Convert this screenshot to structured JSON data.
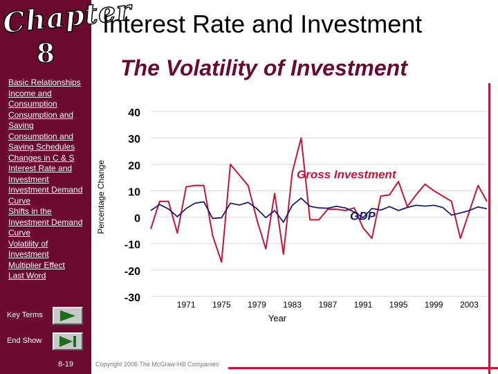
{
  "slide": {
    "title": "Interest Rate and Investment",
    "chapter_word": "Chapter",
    "chapter_number": "8",
    "page_number": "8-19",
    "copyright": "Copyright 2006 The McGraw-Hill Companies"
  },
  "nav": {
    "items": [
      "Basic Relationships",
      "Income and Consumption",
      "Consumption and Saving",
      "Consumption and Saving Schedules",
      "Changes in C & S",
      "Interest Rate and Investment",
      "Investment Demand Curve",
      "Shifts in the Investment Demand Curve",
      "Volatility of Investment",
      "Multiplier Effect",
      "Last Word"
    ]
  },
  "buttons": {
    "key_terms": "Key Terms",
    "end_show": "End Show"
  },
  "colors": {
    "sidebar": "#6b0a2e",
    "gross_investment": "#cc1133",
    "gdp": "#1a1a6e"
  },
  "chart_data": {
    "type": "line",
    "title": "The Volatility of Investment",
    "xlabel": "Year",
    "ylabel": "Percentage Change",
    "ylim": [
      -30,
      40
    ],
    "yticks": [
      40,
      30,
      20,
      10,
      0,
      -10,
      -20,
      -30
    ],
    "xlim": [
      1967,
      2005
    ],
    "xticks": [
      1971,
      1975,
      1979,
      1983,
      1987,
      1991,
      1995,
      1999,
      2003
    ],
    "x": [
      1967,
      1968,
      1969,
      1970,
      1971,
      1972,
      1973,
      1974,
      1975,
      1976,
      1977,
      1978,
      1979,
      1980,
      1981,
      1982,
      1983,
      1984,
      1985,
      1986,
      1987,
      1988,
      1989,
      1990,
      1991,
      1992,
      1993,
      1994,
      1995,
      1996,
      1997,
      1998,
      1999,
      2000,
      2001,
      2002,
      2003,
      2004,
      2005
    ],
    "series": [
      {
        "name": "Gross Investment",
        "label": "Gross Investment",
        "values": [
          -4.5,
          6,
          6,
          -6,
          11.5,
          12,
          12,
          -7,
          -17,
          20,
          16,
          12,
          -1,
          -12,
          9,
          -14,
          17,
          30,
          -1,
          -1,
          3,
          3,
          2.5,
          3.5,
          -4,
          -8,
          8,
          8.5,
          13.5,
          4,
          8.5,
          12.5,
          10,
          8,
          6,
          -8,
          2,
          12,
          6
        ]
      },
      {
        "name": "GDP",
        "label": "GDP",
        "values": [
          2.5,
          4.8,
          3.1,
          0.2,
          3.3,
          5.3,
          5.8,
          -0.5,
          -0.2,
          5.3,
          4.6,
          5.6,
          3.2,
          -0.2,
          2.5,
          -1.9,
          4.5,
          7.2,
          4.1,
          3.5,
          3.4,
          4.1,
          3.5,
          1.9,
          -0.2,
          3.3,
          2.7,
          4.0,
          2.5,
          3.7,
          4.5,
          4.2,
          4.5,
          3.7,
          0.8,
          1.6,
          2.5,
          3.9,
          3.2
        ]
      }
    ]
  }
}
